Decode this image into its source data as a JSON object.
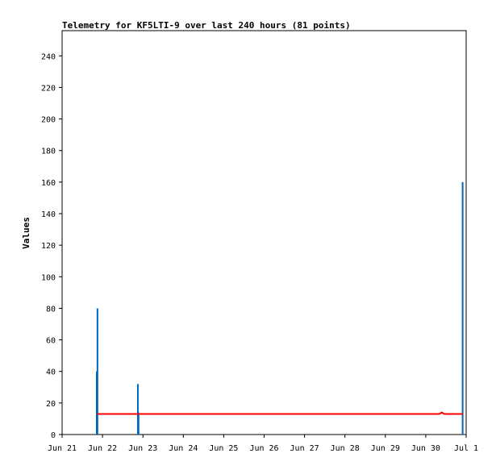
{
  "chart_data": {
    "type": "bar",
    "title": "Telemetry for KF5LTI-9 over last 240 hours (81 points)",
    "xlabel": "",
    "ylabel": "Values",
    "xlim_hours": [
      0,
      240
    ],
    "ylim": [
      0,
      256
    ],
    "x_ticks": [
      {
        "hour": 0,
        "label": "Jun 21"
      },
      {
        "hour": 24,
        "label": "Jun 22"
      },
      {
        "hour": 48,
        "label": "Jun 23"
      },
      {
        "hour": 72,
        "label": "Jun 24"
      },
      {
        "hour": 96,
        "label": "Jun 25"
      },
      {
        "hour": 120,
        "label": "Jun 26"
      },
      {
        "hour": 144,
        "label": "Jun 27"
      },
      {
        "hour": 168,
        "label": "Jun 28"
      },
      {
        "hour": 192,
        "label": "Jun 29"
      },
      {
        "hour": 216,
        "label": "Jun 30"
      },
      {
        "hour": 240,
        "label": "Jul 1"
      }
    ],
    "y_ticks": [
      0,
      20,
      40,
      60,
      80,
      100,
      120,
      140,
      160,
      180,
      200,
      220,
      240
    ],
    "grid": false,
    "legend": "none",
    "series": [
      {
        "color": "#0066bb",
        "style": "impulse",
        "points": [
          {
            "hour": 20.6,
            "value": 40
          },
          {
            "hour": 21.0,
            "value": 80
          },
          {
            "hour": 45.0,
            "value": 32
          },
          {
            "hour": 45.4,
            "value": 14
          },
          {
            "hour": 237.9,
            "value": 160
          }
        ]
      },
      {
        "color": "#ff0000",
        "style": "line",
        "points": [
          {
            "hour": 21.0,
            "value": 13
          },
          {
            "hour": 45.0,
            "value": 13
          },
          {
            "hour": 100.0,
            "value": 13
          },
          {
            "hour": 160.0,
            "value": 13
          },
          {
            "hour": 214.0,
            "value": 13
          },
          {
            "hour": 224.0,
            "value": 13
          },
          {
            "hour": 225.5,
            "value": 14
          },
          {
            "hour": 227.0,
            "value": 13
          },
          {
            "hour": 237.9,
            "value": 13
          }
        ]
      }
    ]
  }
}
